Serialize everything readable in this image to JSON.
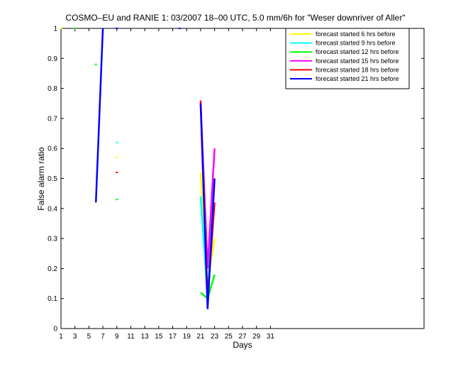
{
  "chart_data": {
    "type": "line",
    "title": "COSMO–EU and RANIE 1: 03/2007 18–00 UTC, 5.0 mm/6h for \"Weser downriver of Aller\"",
    "xlabel": "Days",
    "ylabel": "False alarm ratio",
    "xlim": [
      1,
      53
    ],
    "ylim": [
      0,
      1
    ],
    "xticks": [
      1,
      3,
      5,
      7,
      9,
      11,
      13,
      15,
      17,
      19,
      21,
      23,
      25,
      27,
      29,
      31
    ],
    "yticks": [
      0,
      0.1,
      0.2,
      0.3,
      0.4,
      0.5,
      0.6,
      0.7,
      0.8,
      0.9,
      1
    ],
    "grid": false,
    "legend_position": "top-right",
    "series": [
      {
        "name": "forecast started 6 hrs before",
        "color": "#ffff00",
        "points": [
          [
            1,
            1
          ],
          [
            9,
            0.57
          ],
          [
            21,
            0.52
          ],
          [
            22,
            0.15
          ],
          [
            23,
            0.3
          ]
        ]
      },
      {
        "name": "forecast started 9 hrs before",
        "color": "#00ffff",
        "points": [
          [
            9,
            0.62
          ],
          [
            21,
            0.44
          ],
          [
            22,
            0.1
          ],
          [
            23,
            0.5
          ]
        ]
      },
      {
        "name": "forecast started 12 hrs before",
        "color": "#00ff00",
        "points": [
          [
            3,
            1
          ],
          [
            6,
            0.88
          ],
          [
            9,
            0.43
          ],
          [
            21,
            0.12
          ],
          [
            22,
            0.1
          ],
          [
            23,
            0.18
          ]
        ]
      },
      {
        "name": "forecast started 15 hrs before",
        "color": "#ff00ff",
        "points": [
          [
            21,
            0.75
          ],
          [
            22,
            0.2
          ],
          [
            23,
            0.6
          ]
        ]
      },
      {
        "name": "forecast started 18 hrs before",
        "color": "#ff0000",
        "points": [
          [
            9,
            0.52
          ],
          [
            21,
            0.76
          ],
          [
            22,
            0.1
          ],
          [
            23,
            0.42
          ]
        ]
      },
      {
        "name": "forecast started 21 hrs before",
        "color": "#0000ff",
        "points": [
          [
            6,
            0.42
          ],
          [
            7,
            1
          ],
          [
            9,
            1
          ],
          [
            18,
            1
          ],
          [
            21,
            0.75
          ],
          [
            22,
            0.065
          ],
          [
            23,
            0.5
          ]
        ]
      }
    ]
  }
}
